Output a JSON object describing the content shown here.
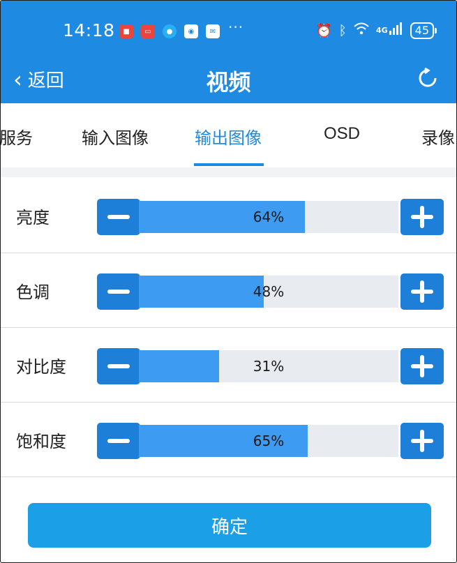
{
  "status_bar": {
    "time": "14:18",
    "network": "4G",
    "battery": "45",
    "more": "···"
  },
  "header": {
    "back_label": "返回",
    "title": "视频"
  },
  "tabs": [
    {
      "label": "服务"
    },
    {
      "label": "输入图像"
    },
    {
      "label": "输出图像",
      "active": true
    },
    {
      "label": "OSD"
    },
    {
      "label": "录像"
    }
  ],
  "settings": [
    {
      "label": "亮度",
      "value": 64,
      "value_text": "64%"
    },
    {
      "label": "色调",
      "value": 48,
      "value_text": "48%"
    },
    {
      "label": "对比度",
      "value": 31,
      "value_text": "31%"
    },
    {
      "label": "饱和度",
      "value": 65,
      "value_text": "65%"
    }
  ],
  "confirm_label": "确定",
  "colors": {
    "primary": "#1e8ae2",
    "fill": "#3d9bf1",
    "track": "#e8ecf0",
    "confirm": "#1ba0e8"
  }
}
